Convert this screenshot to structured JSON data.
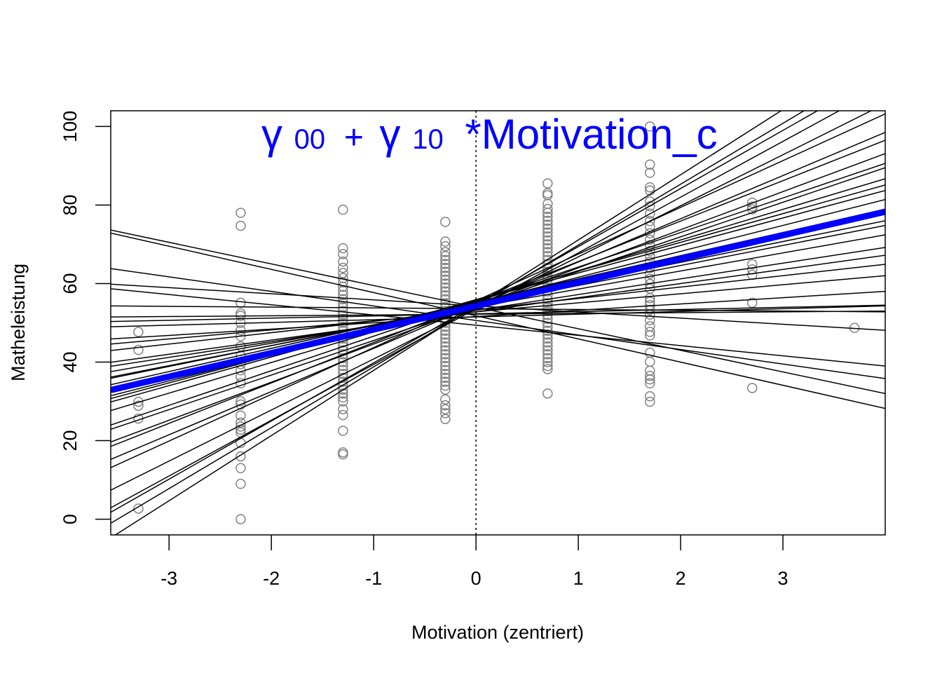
{
  "chart_data": {
    "type": "scatter",
    "xlabel": "Motivation (zentriert)",
    "ylabel": "Matheleistung",
    "xlim": [
      -3.57,
      4.0
    ],
    "ylim": [
      -4,
      104
    ],
    "x_ticks": [
      -3,
      -2,
      -1,
      0,
      1,
      2,
      3
    ],
    "y_ticks": [
      0,
      20,
      40,
      60,
      80,
      100
    ],
    "x_tick_labels": [
      "-3",
      "-2",
      "-1",
      "0",
      "1",
      "2",
      "3"
    ],
    "y_tick_labels": [
      "0",
      "20",
      "40",
      "60",
      "80",
      "100"
    ],
    "annotation": {
      "g00": "γ",
      "g00_sub": "00",
      "plus": "+",
      "g10": "γ",
      "g10_sub": "10",
      "rest": "*Motivation_c",
      "color": "#0000ff"
    },
    "reference_line": {
      "x": 0,
      "style": "dotted",
      "color": "#000000"
    },
    "point_color": "#808080",
    "points": [
      {
        "x": -3.3,
        "ys": [
          47.7,
          43.1,
          29.9,
          28.9,
          25.6,
          2.7
        ]
      },
      {
        "x": -2.3,
        "ys": [
          78.0,
          74.7,
          55.1,
          52.4,
          51.8,
          50.0,
          48.1,
          46.6,
          44.0,
          41.6,
          39.5,
          37.9,
          36.3,
          34.6,
          30.0,
          29.2,
          26.4,
          24.6,
          23.6,
          22.8,
          22.1,
          19.4,
          16.0,
          13.0,
          9.0,
          0.0
        ]
      },
      {
        "x": -1.3,
        "ys": [
          78.8,
          69.0,
          67.5,
          65.6,
          64.0,
          62.7,
          61.4,
          60.3,
          59.2,
          58.1,
          57.1,
          56.0,
          55.0,
          54.0,
          53.0,
          52.0,
          51.0,
          50.0,
          49.0,
          48.0,
          47.0,
          46.0,
          45.0,
          44.0,
          43.0,
          42.0,
          41.0,
          40.0,
          39.0,
          38.0,
          37.0,
          36.0,
          35.0,
          34.0,
          33.0,
          32.0,
          31.0,
          30.0,
          28.0,
          26.5,
          22.5,
          17.0,
          16.5
        ]
      },
      {
        "x": -0.3,
        "ys": [
          75.7,
          70.7,
          69.5,
          68.0,
          67.0,
          66.0,
          65.0,
          64.0,
          63.0,
          62.0,
          61.0,
          60.0,
          59.0,
          58.0,
          57.0,
          56.0,
          55.0,
          54.0,
          53.0,
          52.0,
          51.0,
          50.0,
          49.0,
          48.0,
          47.0,
          46.0,
          45.0,
          44.0,
          43.0,
          42.0,
          41.0,
          40.0,
          39.0,
          38.0,
          37.0,
          36.0,
          35.0,
          34.0,
          33.0,
          30.5,
          29.0,
          28.0,
          27.0,
          25.5
        ]
      },
      {
        "x": 0.7,
        "ys": [
          85.5,
          83.0,
          82.5,
          80.3,
          79.0,
          78.0,
          77.0,
          76.0,
          75.0,
          74.0,
          73.0,
          72.0,
          71.0,
          70.0,
          69.0,
          68.0,
          67.0,
          66.0,
          65.0,
          64.0,
          63.0,
          62.0,
          61.0,
          60.0,
          59.0,
          58.0,
          57.0,
          56.0,
          55.0,
          54.0,
          53.0,
          52.0,
          51.0,
          50.0,
          49.0,
          48.0,
          47.0,
          46.0,
          45.0,
          44.0,
          43.0,
          42.0,
          41.0,
          40.0,
          39.0,
          38.2,
          32.0
        ]
      },
      {
        "x": 1.7,
        "ys": [
          100.0,
          90.3,
          88.2,
          84.5,
          83.7,
          80.9,
          79.7,
          77.8,
          75.9,
          74.5,
          72.8,
          71.2,
          69.8,
          68.3,
          67.0,
          65.6,
          64.0,
          62.5,
          61.2,
          59.9,
          58.7,
          56.3,
          55.4,
          54.5,
          53.3,
          52.1,
          50.7,
          49.1,
          47.7,
          46.8,
          42.4,
          40.1,
          37.8,
          36.5,
          35.6,
          34.6,
          31.3,
          29.9
        ]
      },
      {
        "x": 2.7,
        "ys": [
          80.6,
          79.6,
          78.9,
          64.9,
          63.6,
          62.2,
          55.1,
          33.4
        ]
      },
      {
        "x": 3.7,
        "ys": [
          48.7
        ]
      }
    ],
    "series": [
      {
        "name": "",
        "type": "fixed_effect",
        "color": "#0000ff",
        "line_width": 9,
        "intercept": 54.3,
        "slope": 6.0
      },
      {
        "type": "random_slope",
        "intercept": 54.0,
        "slope": -5.5
      },
      {
        "type": "random_slope",
        "intercept": 51.8,
        "slope": -5.9
      },
      {
        "type": "random_slope",
        "intercept": 50.6,
        "slope": -3.7
      },
      {
        "type": "random_slope",
        "intercept": 49.4,
        "slope": -2.6
      },
      {
        "type": "random_slope",
        "intercept": 54.3,
        "slope": -1.55
      },
      {
        "type": "random_slope",
        "intercept": 53.6,
        "slope": -0.2
      },
      {
        "type": "random_slope",
        "intercept": 52.2,
        "slope": 0.2
      },
      {
        "type": "random_slope",
        "intercept": 51.5,
        "slope": 0.7
      },
      {
        "type": "random_slope",
        "intercept": 52.3,
        "slope": 0.55
      },
      {
        "type": "random_slope",
        "intercept": 51.6,
        "slope": 1.6
      },
      {
        "type": "random_slope",
        "intercept": 52.8,
        "slope": 2.3
      },
      {
        "type": "random_slope",
        "intercept": 53.3,
        "slope": 2.9
      },
      {
        "type": "random_slope",
        "intercept": 52.8,
        "slope": 3.6
      },
      {
        "type": "random_slope",
        "intercept": 53.2,
        "slope": 4.0
      },
      {
        "type": "random_slope",
        "intercept": 54.0,
        "slope": 4.6
      },
      {
        "type": "random_slope",
        "intercept": 54.4,
        "slope": 5.1
      },
      {
        "type": "random_slope",
        "intercept": 54.8,
        "slope": 5.3
      },
      {
        "type": "random_slope",
        "intercept": 55.3,
        "slope": 5.9
      },
      {
        "type": "random_slope",
        "intercept": 55.0,
        "slope": 6.6
      },
      {
        "type": "random_slope",
        "intercept": 55.7,
        "slope": 7.0
      },
      {
        "type": "random_slope",
        "intercept": 55.9,
        "slope": 7.3
      },
      {
        "type": "random_slope",
        "intercept": 55.5,
        "slope": 7.8
      },
      {
        "type": "random_slope",
        "intercept": 55.4,
        "slope": 8.8
      },
      {
        "type": "random_slope",
        "intercept": 54.3,
        "slope": 8.8
      },
      {
        "type": "random_slope",
        "intercept": 54.3,
        "slope": 9.7
      },
      {
        "type": "random_slope",
        "intercept": 55.3,
        "slope": 10.3
      },
      {
        "type": "random_slope",
        "intercept": 54.5,
        "slope": 11.0
      },
      {
        "type": "random_slope",
        "intercept": 55.6,
        "slope": 11.9
      },
      {
        "type": "random_slope",
        "intercept": 53.8,
        "slope": 13.0
      },
      {
        "type": "random_slope",
        "intercept": 53.6,
        "slope": 14.2
      },
      {
        "type": "random_slope",
        "intercept": 54.6,
        "slope": 14.8
      },
      {
        "type": "random_slope",
        "intercept": 54.3,
        "slope": 15.5
      },
      {
        "type": "random_slope",
        "intercept": 54.5,
        "slope": 16.6
      }
    ]
  }
}
